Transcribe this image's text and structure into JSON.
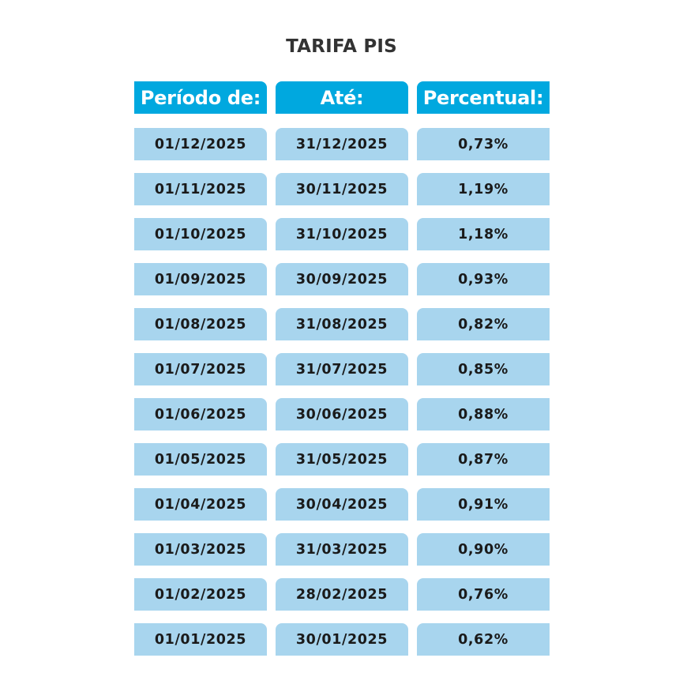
{
  "title": "TARIFA PIS",
  "headers": {
    "start": "Período de:",
    "end": "Até:",
    "percent": "Percentual:"
  },
  "rows": [
    {
      "start": "01/12/2025",
      "end": "31/12/2025",
      "percent": "0,73%"
    },
    {
      "start": "01/11/2025",
      "end": "30/11/2025",
      "percent": "1,19%"
    },
    {
      "start": "01/10/2025",
      "end": "31/10/2025",
      "percent": "1,18%"
    },
    {
      "start": "01/09/2025",
      "end": "30/09/2025",
      "percent": "0,93%"
    },
    {
      "start": "01/08/2025",
      "end": "31/08/2025",
      "percent": "0,82%"
    },
    {
      "start": "01/07/2025",
      "end": "31/07/2025",
      "percent": "0,85%"
    },
    {
      "start": "01/06/2025",
      "end": "30/06/2025",
      "percent": "0,88%"
    },
    {
      "start": "01/05/2025",
      "end": "31/05/2025",
      "percent": "0,87%"
    },
    {
      "start": "01/04/2025",
      "end": "30/04/2025",
      "percent": "0,91%"
    },
    {
      "start": "01/03/2025",
      "end": "31/03/2025",
      "percent": "0,90%"
    },
    {
      "start": "01/02/2025",
      "end": "28/02/2025",
      "percent": "0,76%"
    },
    {
      "start": "01/01/2025",
      "end": "30/01/2025",
      "percent": "0,62%"
    }
  ],
  "colors": {
    "header_bg": "#00a8df",
    "row_bg": "#a8d5ee",
    "title_text": "#333333"
  }
}
